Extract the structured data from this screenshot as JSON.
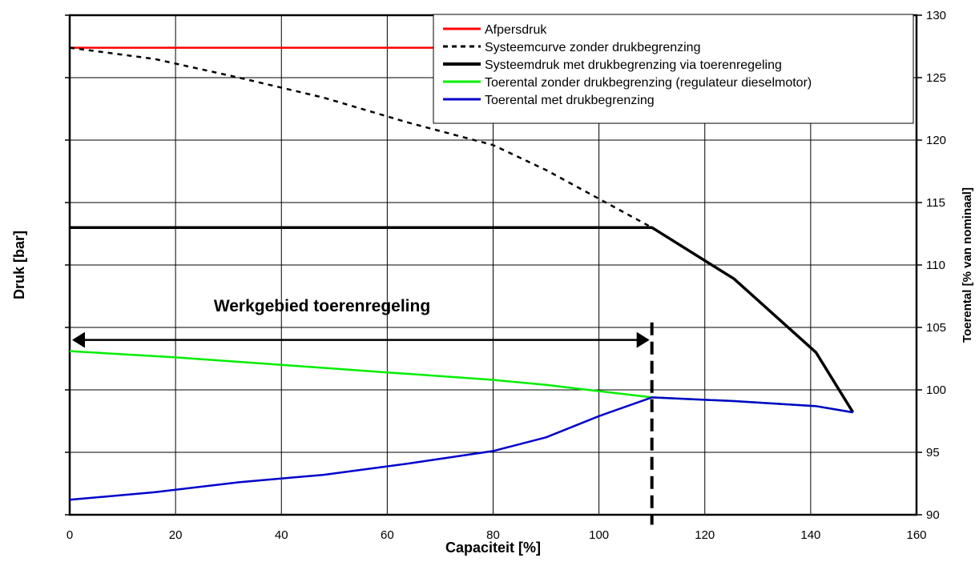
{
  "chart_data": {
    "type": "line",
    "xlabel": "Capaciteit [%]",
    "ylabel": "Druk [bar]",
    "y2label": "Toerental [% van nominaal]",
    "xlim": [
      0,
      160
    ],
    "ylim_right": [
      90,
      130
    ],
    "x_ticks": [
      "0",
      "20",
      "40",
      "60",
      "80",
      "100",
      "120",
      "140",
      "160"
    ],
    "y2_ticks": [
      "90",
      "95",
      "100",
      "105",
      "110",
      "115",
      "120",
      "125",
      "130"
    ],
    "grid": true,
    "legend_position": "top-right",
    "series": [
      {
        "name": "Afpersdruk",
        "color": "#ff0000",
        "style": "solid",
        "points": [
          [
            0,
            127.4
          ],
          [
            70,
            127.4
          ]
        ]
      },
      {
        "name": "Systeemcurve zonder drukbegrenzing",
        "color": "#000000",
        "style": "dashed",
        "points": [
          [
            0,
            127.4
          ],
          [
            16,
            126.5
          ],
          [
            32,
            125.0
          ],
          [
            48,
            123.4
          ],
          [
            64,
            121.4
          ],
          [
            80,
            119.6
          ],
          [
            90,
            117.6
          ],
          [
            100,
            115.3
          ],
          [
            110,
            113.0
          ]
        ]
      },
      {
        "name": "Systeemdruk met drukbegrenzing via toerenregeling",
        "color": "#000000",
        "style": "solid-bold",
        "points": [
          [
            0,
            113.0
          ],
          [
            110,
            113.0
          ],
          [
            125.5,
            108.9
          ],
          [
            141,
            103.0
          ],
          [
            148,
            98.2
          ]
        ]
      },
      {
        "name": "Toerental zonder drukbegrenzing (regulateur dieselmotor)",
        "color": "#00ee00",
        "style": "solid",
        "points": [
          [
            0,
            103.1
          ],
          [
            20,
            102.6
          ],
          [
            40,
            102.0
          ],
          [
            60,
            101.4
          ],
          [
            80,
            100.8
          ],
          [
            90,
            100.4
          ],
          [
            100,
            99.9
          ],
          [
            110,
            99.4
          ],
          [
            125.5,
            99.1
          ],
          [
            141,
            98.7
          ],
          [
            148,
            98.2
          ]
        ]
      },
      {
        "name": "Toerental met drukbegrenzing",
        "color": "#0000cc",
        "style": "solid",
        "points": [
          [
            0,
            91.2
          ],
          [
            16,
            91.8
          ],
          [
            32,
            92.6
          ],
          [
            48,
            93.2
          ],
          [
            64,
            94.1
          ],
          [
            80,
            95.1
          ],
          [
            90,
            96.2
          ],
          [
            100,
            97.9
          ],
          [
            110,
            99.4
          ],
          [
            125.5,
            99.1
          ],
          [
            141,
            98.7
          ],
          [
            148,
            98.2
          ]
        ]
      }
    ],
    "annotations": {
      "region_label": "Werkgebied toerenregeling",
      "arrow_from_x": 0,
      "arrow_to_x": 110,
      "arrow_y": 104.0,
      "vline_x": 110,
      "vline_y_top": 105.4,
      "vline_y_bottom": 89.2
    }
  }
}
